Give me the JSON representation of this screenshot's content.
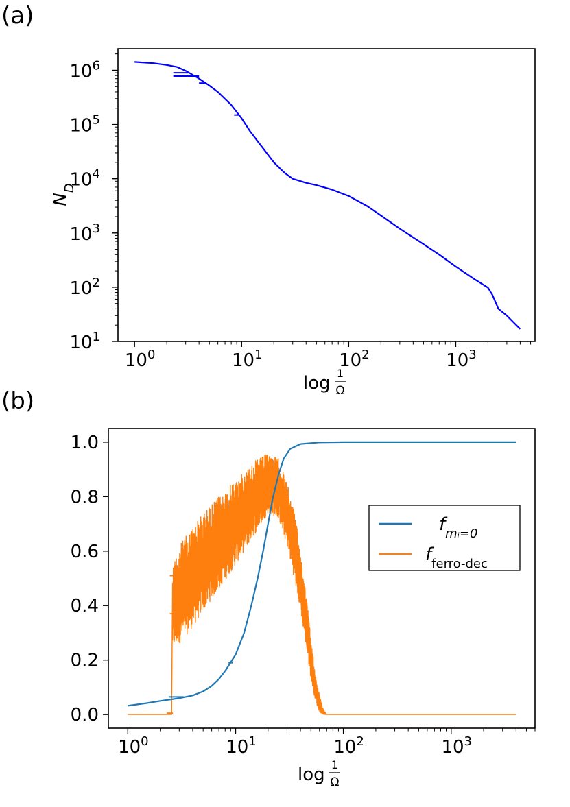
{
  "panels": [
    {
      "label": "(a)",
      "chart_data": {
        "type": "line",
        "title": "",
        "xlabel": "log 1/Ω",
        "ylabel": "N_D",
        "xscale": "log",
        "yscale": "log",
        "xlim": [
          0.7,
          5500
        ],
        "ylim": [
          10,
          2500000
        ],
        "grid": false,
        "legend": "none",
        "x_ticks": [
          {
            "value": 1,
            "base": "10",
            "exp": "0"
          },
          {
            "value": 10,
            "base": "10",
            "exp": "1"
          },
          {
            "value": 100,
            "base": "10",
            "exp": "2"
          },
          {
            "value": 1000,
            "base": "10",
            "exp": "3"
          }
        ],
        "y_ticks": [
          {
            "value": 10,
            "base": "10",
            "exp": "1"
          },
          {
            "value": 100,
            "base": "10",
            "exp": "2"
          },
          {
            "value": 1000,
            "base": "10",
            "exp": "3"
          },
          {
            "value": 10000,
            "base": "10",
            "exp": "4"
          },
          {
            "value": 100000,
            "base": "10",
            "exp": "5"
          },
          {
            "value": 1000000,
            "base": "10",
            "exp": "6"
          }
        ],
        "series": [
          {
            "color": "#0000ff",
            "points": [
              [
                1,
                1420000
              ],
              [
                1.5,
                1350000
              ],
              [
                2,
                1250000
              ],
              [
                2.5,
                1150000
              ],
              [
                3,
                980000
              ],
              [
                4,
                700000
              ],
              [
                5,
                520000
              ],
              [
                6,
                400000
              ],
              [
                8,
                230000
              ],
              [
                10,
                130000
              ],
              [
                12,
                75000
              ],
              [
                15,
                42000
              ],
              [
                20,
                20000
              ],
              [
                25,
                13000
              ],
              [
                30,
                10000
              ],
              [
                40,
                8400
              ],
              [
                50,
                7600
              ],
              [
                70,
                6300
              ],
              [
                100,
                4800
              ],
              [
                150,
                3100
              ],
              [
                200,
                2100
              ],
              [
                300,
                1200
              ],
              [
                500,
                620
              ],
              [
                700,
                400
              ],
              [
                1000,
                240
              ],
              [
                1500,
                140
              ],
              [
                2000,
                98
              ],
              [
                2200,
                72
              ],
              [
                2500,
                40
              ],
              [
                3000,
                30
              ],
              [
                3500,
                22
              ],
              [
                4000,
                17
              ]
            ],
            "outlier_steps": [
              {
                "x": [
                  2.3,
                  3.2
                ],
                "y": 900000
              },
              {
                "x": [
                  2.3,
                  4.0
                ],
                "y": 780000
              },
              {
                "x": [
                  4.0,
                  4.6
                ],
                "y": 580000
              },
              {
                "x": [
                  8.5,
                  9.5
                ],
                "y": 150000
              }
            ]
          }
        ]
      }
    },
    {
      "label": "(b)",
      "chart_data": {
        "type": "line",
        "title": "",
        "xlabel": "log 1/Ω",
        "ylabel": "",
        "xscale": "log",
        "yscale": "linear",
        "xlim": [
          0.66,
          6000
        ],
        "ylim": [
          -0.05,
          1.05
        ],
        "grid": false,
        "legend": "right",
        "x_ticks": [
          {
            "value": 1,
            "base": "10",
            "exp": "0"
          },
          {
            "value": 10,
            "base": "10",
            "exp": "1"
          },
          {
            "value": 100,
            "base": "10",
            "exp": "2"
          },
          {
            "value": 1000,
            "base": "10",
            "exp": "3"
          }
        ],
        "y_ticks": [
          {
            "value": 0.0,
            "label": "0.0"
          },
          {
            "value": 0.2,
            "label": "0.2"
          },
          {
            "value": 0.4,
            "label": "0.4"
          },
          {
            "value": 0.6,
            "label": "0.6"
          },
          {
            "value": 0.8,
            "label": "0.8"
          },
          {
            "value": 1.0,
            "label": "1.0"
          }
        ],
        "series": [
          {
            "legend_base": "f",
            "legend_sub": "mᵢ=0",
            "color": "#1f77b4",
            "points": [
              [
                1,
                0.032
              ],
              [
                1.5,
                0.042
              ],
              [
                2,
                0.05
              ],
              [
                3,
                0.06
              ],
              [
                4,
                0.07
              ],
              [
                5,
                0.085
              ],
              [
                6,
                0.105
              ],
              [
                7,
                0.13
              ],
              [
                8,
                0.16
              ],
              [
                10,
                0.22
              ],
              [
                12,
                0.3
              ],
              [
                14,
                0.4
              ],
              [
                16,
                0.5
              ],
              [
                18,
                0.6
              ],
              [
                20,
                0.7
              ],
              [
                22,
                0.79
              ],
              [
                25,
                0.88
              ],
              [
                28,
                0.94
              ],
              [
                32,
                0.975
              ],
              [
                40,
                0.993
              ],
              [
                60,
                0.999
              ],
              [
                100,
                1.0
              ],
              [
                1000,
                1.0
              ],
              [
                4000,
                1.0
              ]
            ]
          },
          {
            "legend_base": "f",
            "legend_sub": "ferro-dec",
            "color": "#ff7f0e",
            "envelope_upper": [
              [
                2.6,
                0.55
              ],
              [
                3,
                0.62
              ],
              [
                4,
                0.69
              ],
              [
                5,
                0.74
              ],
              [
                7,
                0.8
              ],
              [
                10,
                0.86
              ],
              [
                15,
                0.93
              ],
              [
                20,
                0.96
              ],
              [
                25,
                0.94
              ],
              [
                30,
                0.85
              ],
              [
                35,
                0.75
              ],
              [
                40,
                0.6
              ],
              [
                45,
                0.45
              ],
              [
                50,
                0.28
              ],
              [
                55,
                0.15
              ],
              [
                60,
                0.07
              ],
              [
                65,
                0.02
              ],
              [
                70,
                0.0
              ]
            ],
            "envelope_lower": [
              [
                2.6,
                0.24
              ],
              [
                3,
                0.26
              ],
              [
                4,
                0.32
              ],
              [
                5,
                0.38
              ],
              [
                7,
                0.46
              ],
              [
                10,
                0.55
              ],
              [
                15,
                0.66
              ],
              [
                20,
                0.74
              ],
              [
                25,
                0.72
              ],
              [
                30,
                0.62
              ],
              [
                35,
                0.5
              ],
              [
                40,
                0.38
              ],
              [
                45,
                0.25
              ],
              [
                50,
                0.13
              ],
              [
                55,
                0.05
              ],
              [
                60,
                0.01
              ],
              [
                65,
                0.0
              ],
              [
                70,
                0.0
              ]
            ],
            "baseline": [
              [
                1,
                0.0
              ],
              [
                2.55,
                0.0
              ],
              [
                70,
                0.0
              ],
              [
                4000,
                0.0
              ]
            ],
            "outlier_steps": [
              {
                "x": [
                  2.45,
                  2.62
                ],
                "y": 0.51
              },
              {
                "x": [
                  2.45,
                  2.62
                ],
                "y": 0.37
              },
              {
                "x": [
                  2.3,
                  2.62
                ],
                "y": 0.005
              }
            ]
          }
        ]
      }
    }
  ]
}
